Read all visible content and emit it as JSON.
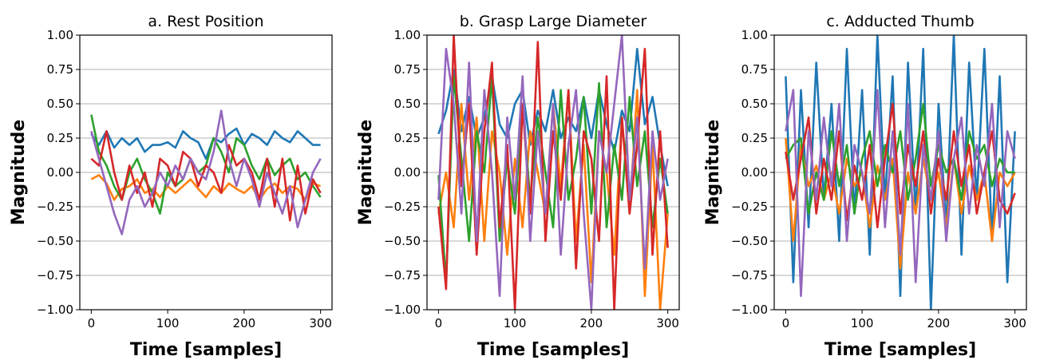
{
  "figure": {
    "background": "#ffffff"
  },
  "palette": [
    "#1f77b4",
    "#ff7f0e",
    "#2ca02c",
    "#d62728",
    "#9467bd"
  ],
  "chart_data": [
    {
      "type": "line",
      "title": "a. Rest Position",
      "xlabel": "Time [samples]",
      "ylabel": "Magnitude",
      "xlim": [
        -15,
        315
      ],
      "ylim": [
        -1.0,
        1.0
      ],
      "xticks": [
        0,
        100,
        200,
        300
      ],
      "xtick_labels": [
        "0",
        "100",
        "200",
        "300"
      ],
      "yticks": [
        -1.0,
        -0.75,
        -0.5,
        -0.25,
        0.0,
        0.25,
        0.5,
        0.75,
        1.0
      ],
      "ytick_labels": [
        "−1.00",
        "−0.75",
        "−0.50",
        "−0.25",
        "0.00",
        "0.25",
        "0.50",
        "0.75",
        "1.00"
      ],
      "grid": "horizontal",
      "legend": "none",
      "x": [
        0,
        10,
        20,
        30,
        40,
        50,
        60,
        70,
        80,
        90,
        100,
        110,
        120,
        130,
        140,
        150,
        160,
        170,
        180,
        190,
        200,
        210,
        220,
        230,
        240,
        250,
        260,
        270,
        280,
        290,
        300
      ],
      "series": [
        {
          "color": "#1f77b4",
          "values": [
            0.28,
            0.2,
            0.3,
            0.18,
            0.25,
            0.2,
            0.25,
            0.15,
            0.2,
            0.2,
            0.22,
            0.18,
            0.3,
            0.25,
            0.22,
            0.1,
            0.25,
            0.22,
            0.28,
            0.32,
            0.2,
            0.28,
            0.25,
            0.2,
            0.3,
            0.25,
            0.22,
            0.3,
            0.25,
            0.2,
            0.2
          ]
        },
        {
          "color": "#ff7f0e",
          "values": [
            -0.05,
            -0.02,
            -0.08,
            -0.2,
            -0.12,
            -0.1,
            -0.05,
            -0.15,
            -0.12,
            -0.18,
            -0.1,
            -0.15,
            -0.1,
            -0.05,
            -0.12,
            -0.18,
            -0.1,
            -0.15,
            -0.08,
            -0.12,
            -0.15,
            -0.1,
            -0.2,
            -0.12,
            -0.08,
            -0.15,
            -0.1,
            -0.12,
            -0.2,
            -0.08,
            -0.1
          ]
        },
        {
          "color": "#2ca02c",
          "values": [
            0.42,
            0.15,
            0.05,
            -0.1,
            -0.2,
            0.0,
            0.1,
            -0.05,
            -0.15,
            -0.3,
            0.0,
            -0.1,
            -0.05,
            0.1,
            0.0,
            0.05,
            0.25,
            0.15,
            0.0,
            0.25,
            0.2,
            0.05,
            -0.05,
            0.1,
            -0.02,
            0.05,
            0.1,
            -0.05,
            0.0,
            -0.1,
            -0.18
          ]
        },
        {
          "color": "#d62728",
          "values": [
            0.1,
            0.05,
            0.3,
            0.0,
            -0.2,
            0.05,
            -0.15,
            0.0,
            -0.25,
            0.1,
            0.05,
            -0.1,
            0.15,
            0.1,
            -0.1,
            0.05,
            0.0,
            -0.15,
            0.2,
            0.05,
            0.1,
            0.0,
            -0.2,
            0.1,
            -0.25,
            0.1,
            -0.35,
            0.05,
            -0.3,
            -0.05,
            -0.15
          ]
        },
        {
          "color": "#9467bd",
          "values": [
            0.3,
            0.1,
            -0.1,
            -0.3,
            -0.45,
            -0.2,
            -0.1,
            -0.25,
            -0.15,
            0.0,
            -0.1,
            0.05,
            -0.05,
            0.1,
            0.0,
            -0.05,
            0.15,
            0.45,
            0.1,
            -0.1,
            0.1,
            -0.05,
            -0.25,
            0.0,
            -0.15,
            -0.3,
            -0.1,
            -0.4,
            -0.2,
            0.0,
            0.1
          ]
        }
      ]
    },
    {
      "type": "line",
      "title": "b. Grasp Large Diameter",
      "xlabel": "Time [samples]",
      "ylabel": "Magnitude",
      "xlim": [
        -15,
        315
      ],
      "ylim": [
        -1.0,
        1.0
      ],
      "xticks": [
        0,
        100,
        200,
        300
      ],
      "xtick_labels": [
        "0",
        "100",
        "200",
        "300"
      ],
      "yticks": [
        -1.0,
        -0.75,
        -0.5,
        -0.25,
        0.0,
        0.25,
        0.5,
        0.75,
        1.0
      ],
      "ytick_labels": [
        "−1.00",
        "−0.75",
        "−0.50",
        "−0.25",
        "0.00",
        "0.25",
        "0.50",
        "0.75",
        "1.00"
      ],
      "grid": "horizontal",
      "legend": "none",
      "x": [
        0,
        10,
        20,
        30,
        40,
        50,
        60,
        70,
        80,
        90,
        100,
        110,
        120,
        130,
        140,
        150,
        160,
        170,
        180,
        190,
        200,
        210,
        220,
        230,
        240,
        250,
        260,
        270,
        280,
        290,
        300
      ],
      "series": [
        {
          "color": "#1f77b4",
          "values": [
            0.28,
            0.45,
            0.75,
            0.3,
            0.55,
            0.25,
            0.4,
            0.7,
            0.35,
            0.25,
            0.5,
            0.6,
            0.2,
            0.45,
            0.3,
            0.6,
            0.25,
            0.4,
            0.3,
            0.55,
            0.25,
            0.6,
            0.35,
            0.15,
            0.45,
            0.3,
            0.9,
            0.35,
            0.55,
            0.2,
            -0.1
          ]
        },
        {
          "color": "#ff7f0e",
          "values": [
            -0.3,
            0.0,
            -0.4,
            0.5,
            -0.2,
            0.4,
            -0.5,
            0.3,
            0.0,
            -0.6,
            0.1,
            -0.4,
            0.3,
            0.0,
            -0.3,
            0.5,
            -0.1,
            0.6,
            -0.5,
            0.2,
            -0.8,
            0.3,
            0.0,
            -0.6,
            0.4,
            -0.3,
            0.6,
            -0.9,
            0.2,
            -1.0,
            -0.3
          ]
        },
        {
          "color": "#2ca02c",
          "values": [
            -0.02,
            -0.8,
            0.7,
            0.1,
            -0.5,
            0.3,
            0.0,
            0.7,
            -0.5,
            0.1,
            -0.3,
            0.5,
            -0.2,
            0.4,
            0.0,
            -0.4,
            0.6,
            -0.2,
            0.1,
            0.55,
            -0.3,
            0.65,
            -0.4,
            0.2,
            -0.2,
            0.55,
            -0.1,
            0.3,
            -0.4,
            0.1,
            -0.3
          ]
        },
        {
          "color": "#d62728",
          "values": [
            -0.25,
            -0.85,
            1.0,
            -0.1,
            0.5,
            -0.6,
            0.3,
            0.8,
            -0.4,
            0.2,
            -1.0,
            0.5,
            -0.3,
            0.95,
            -0.5,
            0.3,
            -0.2,
            0.6,
            -0.7,
            0.3,
            0.1,
            -0.5,
            0.7,
            -1.0,
            0.4,
            -0.3,
            0.2,
            0.9,
            -0.6,
            0.3,
            -0.55
          ]
        },
        {
          "color": "#9467bd",
          "values": [
            -0.2,
            0.9,
            0.5,
            -0.3,
            0.8,
            -0.5,
            0.6,
            0.0,
            -0.9,
            0.4,
            -0.2,
            0.7,
            -0.5,
            0.3,
            -0.3,
            0.5,
            -0.6,
            0.2,
            0.6,
            -0.3,
            -1.0,
            0.3,
            0.0,
            0.5,
            1.0,
            -0.2,
            0.4,
            -0.7,
            0.3,
            -0.2,
            0.1
          ]
        }
      ]
    },
    {
      "type": "line",
      "title": "c. Adducted Thumb",
      "xlabel": "Time [samples]",
      "ylabel": "Magnitude",
      "xlim": [
        -15,
        315
      ],
      "ylim": [
        -1.0,
        1.0
      ],
      "xticks": [
        0,
        100,
        200,
        300
      ],
      "xtick_labels": [
        "0",
        "100",
        "200",
        "300"
      ],
      "yticks": [
        -1.0,
        -0.75,
        -0.5,
        -0.25,
        0.0,
        0.25,
        0.5,
        0.75,
        1.0
      ],
      "ytick_labels": [
        "−1.00",
        "−0.75",
        "−0.50",
        "−0.25",
        "0.00",
        "0.25",
        "0.50",
        "0.75",
        "1.00"
      ],
      "grid": "horizontal",
      "legend": "none",
      "x": [
        0,
        10,
        20,
        30,
        40,
        50,
        60,
        70,
        80,
        90,
        100,
        110,
        120,
        130,
        140,
        150,
        160,
        170,
        180,
        190,
        200,
        210,
        220,
        230,
        240,
        250,
        260,
        270,
        280,
        290,
        300
      ],
      "series": [
        {
          "color": "#1f77b4",
          "values": [
            0.7,
            -0.8,
            0.6,
            -0.4,
            0.8,
            -0.2,
            0.5,
            -0.5,
            0.9,
            -0.3,
            0.6,
            -0.6,
            1.0,
            -0.2,
            0.7,
            -0.9,
            0.8,
            -0.3,
            0.9,
            -1.0,
            0.5,
            -0.4,
            1.0,
            -0.6,
            0.8,
            -0.2,
            0.9,
            -0.5,
            0.7,
            -0.8,
            0.3
          ]
        },
        {
          "color": "#ff7f0e",
          "values": [
            0.25,
            -0.5,
            0.2,
            -0.1,
            0.05,
            -0.2,
            0.0,
            -0.3,
            0.1,
            -0.1,
            0.0,
            -0.4,
            0.05,
            -0.2,
            0.1,
            -0.7,
            0.0,
            -0.3,
            0.1,
            -0.2,
            0.0,
            -0.4,
            0.1,
            -0.3,
            0.05,
            -0.2,
            0.0,
            -0.5,
            0.0,
            -0.1,
            0.0
          ]
        },
        {
          "color": "#2ca02c",
          "values": [
            0.1,
            0.2,
            0.25,
            -0.3,
            0.0,
            -0.2,
            0.3,
            -0.1,
            0.2,
            -0.3,
            0.1,
            0.3,
            -0.1,
            0.2,
            0.0,
            0.3,
            -0.2,
            0.1,
            0.5,
            -0.1,
            0.2,
            0.0,
            0.1,
            -0.2,
            0.3,
            0.1,
            0.2,
            -0.1,
            0.1,
            0.0,
            0.0
          ]
        },
        {
          "color": "#d62728",
          "values": [
            0.15,
            -0.2,
            0.1,
            0.4,
            -0.3,
            0.1,
            -0.2,
            0.3,
            -0.35,
            0.05,
            -0.2,
            0.2,
            -0.4,
            0.1,
            0.5,
            -0.3,
            0.2,
            -0.1,
            0.3,
            -0.3,
            0.1,
            -0.2,
            0.3,
            -0.1,
            0.2,
            -0.3,
            0.0,
            0.3,
            -0.2,
            -0.3,
            -0.15
          ]
        },
        {
          "color": "#9467bd",
          "values": [
            0.3,
            0.6,
            -0.9,
            0.3,
            -0.2,
            0.4,
            -0.1,
            0.5,
            -0.5,
            0.2,
            0.0,
            -0.3,
            0.6,
            -0.4,
            0.3,
            -0.6,
            0.5,
            -0.8,
            0.2,
            -0.2,
            0.3,
            -0.5,
            0.1,
            0.4,
            -0.3,
            0.2,
            -0.1,
            0.5,
            -0.4,
            0.3,
            0.1
          ]
        }
      ]
    }
  ]
}
